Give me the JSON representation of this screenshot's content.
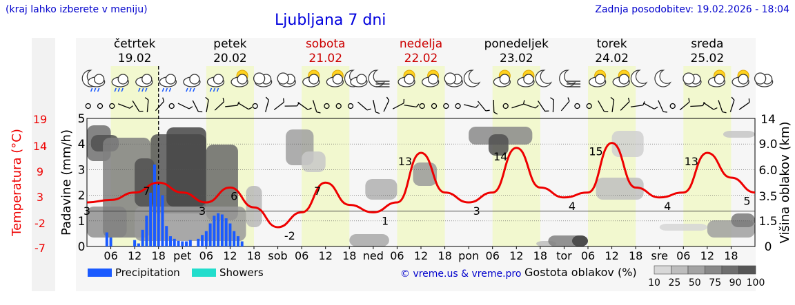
{
  "header": {
    "left_note": "(kraj lahko izberete v meniju)",
    "title": "Ljubljana 7 dni",
    "updated": "Zadnja posodobitev: 19.02.2026 - 18:04"
  },
  "chart_data": {
    "type": "line",
    "days": [
      {
        "name": "četrtek",
        "date": "19.02",
        "weekend": false
      },
      {
        "name": "petek",
        "date": "20.02",
        "weekend": false
      },
      {
        "name": "sobota",
        "date": "21.02",
        "weekend": true
      },
      {
        "name": "nedelja",
        "date": "22.02",
        "weekend": true
      },
      {
        "name": "ponedeljek",
        "date": "23.02",
        "weekend": false
      },
      {
        "name": "torek",
        "date": "24.02",
        "weekend": false
      },
      {
        "name": "sreda",
        "date": "25.02",
        "weekend": false
      }
    ],
    "x_tick_labels": [
      "06",
      "12",
      "18",
      "pet",
      "06",
      "12",
      "18",
      "sob",
      "06",
      "12",
      "18",
      "ned",
      "06",
      "12",
      "18",
      "pon",
      "06",
      "12",
      "18",
      "tor",
      "06",
      "12",
      "18",
      "sre",
      "06",
      "12",
      "18"
    ],
    "y_left_label": "Padavine (mm/h)",
    "y_left_ticks": [
      "0",
      "1",
      "2",
      "3",
      "4",
      "5"
    ],
    "y_left_lim": [
      0,
      5
    ],
    "temp_label": "Temperatura (°C)",
    "temp_ticks": [
      "19",
      "14",
      "9",
      "3",
      "-2",
      "-7"
    ],
    "y_right_label": "Višina oblakov (km)",
    "y_right_ticks": [
      "0",
      "1.5",
      "3.5",
      "6.0",
      "9.0",
      "14"
    ],
    "temperature_series": {
      "hours": [
        0,
        6,
        12,
        18,
        24,
        30,
        36,
        42,
        48,
        54,
        60,
        66,
        72,
        78,
        84,
        90,
        96,
        102,
        108,
        114,
        120,
        126,
        132,
        138,
        144,
        150,
        156,
        162,
        168
      ],
      "values": [
        3.0,
        3.5,
        5.0,
        7.0,
        5.0,
        3.0,
        6.0,
        2.0,
        -2.0,
        1.0,
        7.0,
        2.5,
        1.0,
        3.0,
        13.0,
        5.0,
        3.0,
        5.0,
        14.0,
        6.0,
        4.0,
        5.0,
        15.0,
        6.0,
        4.0,
        5.0,
        13.0,
        8.0,
        5.0
      ]
    },
    "temp_labels": [
      {
        "hour": 0,
        "text": "3"
      },
      {
        "hour": 15,
        "text": "7"
      },
      {
        "hour": 29,
        "text": "3"
      },
      {
        "hour": 37,
        "text": "6"
      },
      {
        "hour": 51,
        "text": "-2"
      },
      {
        "hour": 58,
        "text": "7"
      },
      {
        "hour": 75,
        "text": "1"
      },
      {
        "hour": 80,
        "text": "13"
      },
      {
        "hour": 98,
        "text": "3"
      },
      {
        "hour": 104,
        "text": "14"
      },
      {
        "hour": 122,
        "text": "4"
      },
      {
        "hour": 128,
        "text": "15"
      },
      {
        "hour": 146,
        "text": "4"
      },
      {
        "hour": 152,
        "text": "13"
      },
      {
        "hour": 166,
        "text": "5"
      }
    ],
    "precipitation": {
      "hours": [
        5,
        6,
        12,
        13,
        14,
        15,
        16,
        17,
        18,
        19,
        20,
        21,
        22,
        23,
        24,
        25,
        26,
        28,
        29,
        30,
        31,
        32,
        33,
        34,
        35,
        36,
        37,
        38,
        39
      ],
      "values": [
        0.55,
        0.35,
        0.25,
        0.12,
        0.65,
        1.2,
        2.1,
        3.2,
        2.4,
        2.0,
        0.8,
        0.4,
        0.3,
        0.22,
        0.2,
        0.2,
        0.25,
        0.3,
        0.45,
        0.6,
        0.9,
        1.2,
        1.3,
        1.25,
        1.1,
        0.9,
        0.6,
        0.4,
        0.2
      ]
    },
    "now_hour": 18,
    "legend": {
      "precipitation": "Precipitation",
      "showers": "Showers",
      "precip_color": "#1a5aff",
      "showers_color": "#22ddcc",
      "copyright": "© vreme.us & vreme.pro",
      "cloud_density_label": "Gostota oblakov (%)",
      "cloud_density_ticks": [
        "10",
        "25",
        "50",
        "75",
        "90",
        "100"
      ]
    },
    "colors": {
      "temperature": "#ee0000",
      "weekend_day": "#cc0000",
      "weekday": "#000000",
      "daytime_band": "#f2f8cf"
    },
    "weather_icons": [
      "moon-cloud-rain",
      "cloud-rain",
      "cloud-rain",
      "cloud-rain",
      "cloud-rain",
      "cloud-rain",
      "sun-cloud",
      "cloud",
      "cloud",
      "sun-cloud",
      "sun-cloud",
      "moon-cloud",
      "moon-fog",
      "sun-cloud",
      "sun-cloud",
      "cloud",
      "moon",
      "sun-cloud",
      "sun-cloud",
      "moon",
      "moon-fog",
      "sun-cloud",
      "sun-cloud",
      "moon",
      "moon",
      "cloud",
      "sun-cloud",
      "sun-cloud",
      "cloud"
    ]
  }
}
